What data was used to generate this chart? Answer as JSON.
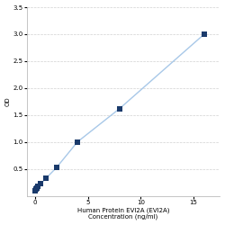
{
  "x": [
    0,
    0.0625,
    0.125,
    0.25,
    0.5,
    1.0,
    2.0,
    4.0,
    8.0,
    16.0
  ],
  "y": [
    0.1,
    0.13,
    0.15,
    0.18,
    0.22,
    0.32,
    0.52,
    1.0,
    1.62,
    3.0
  ],
  "line_color": "#a8c8e8",
  "marker_color": "#1a3a6b",
  "marker_size": 4,
  "marker_style": "s",
  "xlabel_line1": "Human Protein EVI2A (EVI2A)",
  "xlabel_line2": "Concentration (ng/ml)",
  "ylabel": "OD",
  "xlim": [
    -0.8,
    17.5
  ],
  "ylim": [
    0,
    3.5
  ],
  "yticks": [
    0.5,
    1.0,
    1.5,
    2.0,
    2.5,
    3.0,
    3.5
  ],
  "xticks": [
    0,
    5,
    10,
    15
  ],
  "grid_color": "#d0d0d0",
  "bg_color": "#ffffff",
  "label_fontsize": 5.0,
  "tick_fontsize": 5.0
}
